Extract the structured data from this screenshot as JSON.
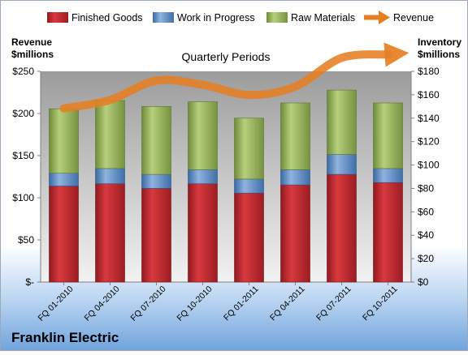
{
  "chart_data": {
    "type": "bar",
    "stacked": true,
    "title": "Quarterly Periods",
    "company": "Franklin Electric",
    "categories": [
      "FQ 01-2010",
      "FQ 04-2010",
      "FQ 07-2010",
      "FQ 10-2010",
      "FQ 01-2011",
      "FQ 04-2011",
      "FQ 07-2011",
      "FQ 10-2011"
    ],
    "series": [
      {
        "name": "Finished Goods",
        "color": "#c0272d",
        "values": [
          82,
          84,
          80,
          84,
          76,
          83,
          92,
          85
        ]
      },
      {
        "name": "Work in Progress",
        "color": "#4f81bd",
        "values": [
          11,
          13,
          12,
          12,
          12,
          13,
          17,
          12
        ]
      },
      {
        "name": "Raw Materials",
        "color": "#9bbb59",
        "values": [
          55,
          58,
          58,
          58,
          52,
          57,
          55,
          56
        ]
      }
    ],
    "line_series": {
      "name": "Revenue",
      "color": "#e67e22",
      "values": [
        206,
        216,
        239,
        234,
        222,
        232,
        266,
        270
      ]
    },
    "ylabel_left": "Revenue\n$millions",
    "ylabel_right": "Inventory\n$millions",
    "ylim_left": [
      0,
      250
    ],
    "ylim_right": [
      0,
      180
    ],
    "yticks_left": [
      "$-",
      "$50",
      "$100",
      "$150",
      "$200",
      "$250"
    ],
    "yticks_right": [
      "$0",
      "$20",
      "$40",
      "$60",
      "$80",
      "$100",
      "$120",
      "$140",
      "$160",
      "$180"
    ],
    "legend_position": "top",
    "grid": false
  }
}
